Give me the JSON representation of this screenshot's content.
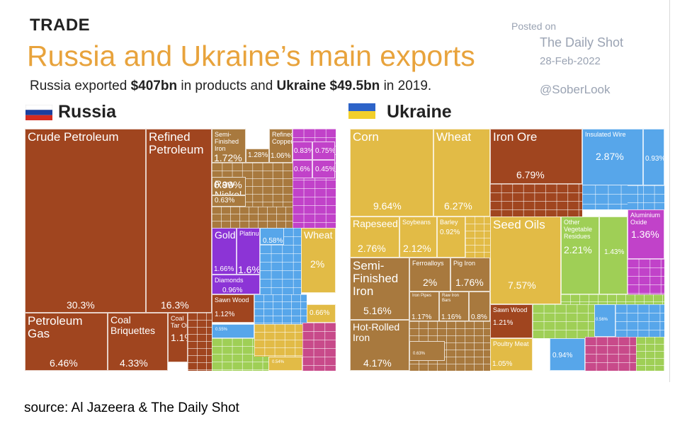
{
  "header": {
    "kicker": "TRADE",
    "title": "Russia and Ukraine’s main exports",
    "subtitle_parts": [
      "Russia exported ",
      "$407bn",
      " in products and ",
      "Ukraine",
      " ",
      "$49.5bn",
      " in 2019."
    ],
    "posted_on": "Posted on",
    "publisher": "The Daily Shot",
    "date": "28-Feb-2022",
    "handle": "@SoberLook"
  },
  "countries": {
    "russia": "Russia",
    "ukraine": "Ukraine"
  },
  "source": "source: Al Jazeera & The Daily Shot",
  "colors": {
    "brown": "#a0451f",
    "tan": "#a8793e",
    "yellow": "#e2bb46",
    "purple": "#8c34d6",
    "blue": "#57a6ea",
    "magenta": "#c142c9",
    "green": "#9fcf56",
    "pink": "#c84a8a",
    "title_orange": "#e8a33c"
  },
  "chart_data": [
    {
      "type": "treemap",
      "name": "Russia",
      "tiles": [
        {
          "label": "Crude Petroleum",
          "value": "30.3%",
          "color": "#a0451f"
        },
        {
          "label": "Refined Petroleum",
          "value": "16.3%",
          "color": "#a0451f"
        },
        {
          "label": "Petroleum Gas",
          "value": "6.46%",
          "color": "#a0451f"
        },
        {
          "label": "Coal Briquettes",
          "value": "4.33%",
          "color": "#a0451f"
        },
        {
          "label": "Coal Tar Oil",
          "value": "1.1%",
          "color": "#a0451f"
        },
        {
          "label": "Semi-Finished Iron",
          "value": "1.72%",
          "color": "#a8793e"
        },
        {
          "label": "",
          "value": "1.28%",
          "color": "#a8793e"
        },
        {
          "label": "Refined Copper",
          "value": "1.06%",
          "color": "#a8793e"
        },
        {
          "label": "Raw Nickel",
          "value": "0.99%",
          "color": "#a8793e"
        },
        {
          "label": "",
          "value": "0.63%",
          "color": "#a8793e"
        },
        {
          "label": "",
          "value": "0.83%",
          "color": "#c142c9"
        },
        {
          "label": "",
          "value": "0.75%",
          "color": "#c142c9"
        },
        {
          "label": "",
          "value": "0.6%",
          "color": "#c142c9"
        },
        {
          "label": "",
          "value": "0.45%",
          "color": "#c142c9"
        },
        {
          "label": "Gold",
          "value": "1.66%",
          "color": "#8c34d6"
        },
        {
          "label": "Platinum",
          "value": "1.6%",
          "color": "#8c34d6"
        },
        {
          "label": "Diamonds",
          "value": "0.96%",
          "color": "#8c34d6"
        },
        {
          "label": "",
          "value": "0.58%",
          "color": "#57a6ea"
        },
        {
          "label": "Wheat",
          "value": "2%",
          "color": "#e2bb46"
        },
        {
          "label": "Sawn Wood",
          "value": "1.12%",
          "color": "#a0451f"
        },
        {
          "label": "",
          "value": "0.66%",
          "color": "#e2bb46"
        },
        {
          "label": "",
          "value": "0.55%",
          "color": "#57a6ea"
        },
        {
          "label": "",
          "value": "0.54%",
          "color": "#e2bb46"
        }
      ]
    },
    {
      "type": "treemap",
      "name": "Ukraine",
      "tiles": [
        {
          "label": "Corn",
          "value": "9.64%",
          "color": "#e2bb46"
        },
        {
          "label": "Wheat",
          "value": "6.27%",
          "color": "#e2bb46"
        },
        {
          "label": "Iron Ore",
          "value": "6.79%",
          "color": "#a0451f"
        },
        {
          "label": "Insulated Wire",
          "value": "2.87%",
          "color": "#57a6ea"
        },
        {
          "label": "",
          "value": "0.93%",
          "color": "#57a6ea"
        },
        {
          "label": "Rapeseed",
          "value": "2.76%",
          "color": "#e2bb46"
        },
        {
          "label": "Soybeans",
          "value": "2.12%",
          "color": "#e2bb46"
        },
        {
          "label": "Barley",
          "value": "0.92%",
          "color": "#e2bb46"
        },
        {
          "label": "Seed Oils",
          "value": "7.57%",
          "color": "#e2bb46"
        },
        {
          "label": "Other Vegetable Residues",
          "value": "2.21%",
          "color": "#9fcf56"
        },
        {
          "label": "",
          "value": "1.43%",
          "color": "#9fcf56"
        },
        {
          "label": "Aluminium Oxide",
          "value": "1.36%",
          "color": "#c142c9"
        },
        {
          "label": "Semi-Finished Iron",
          "value": "5.16%",
          "color": "#a8793e"
        },
        {
          "label": "Ferroalloys",
          "value": "2%",
          "color": "#a8793e"
        },
        {
          "label": "Pig Iron",
          "value": "1.76%",
          "color": "#a8793e"
        },
        {
          "label": "Iron Pipes",
          "value": "1.17%",
          "color": "#a8793e"
        },
        {
          "label": "Raw Iron Bars",
          "value": "1.16%",
          "color": "#a8793e"
        },
        {
          "label": "",
          "value": "0.8%",
          "color": "#a8793e"
        },
        {
          "label": "Hot-Rolled Iron",
          "value": "4.17%",
          "color": "#a8793e"
        },
        {
          "label": "",
          "value": "0.63%",
          "color": "#a8793e"
        },
        {
          "label": "Sawn Wood",
          "value": "1.21%",
          "color": "#a0451f"
        },
        {
          "label": "Poultry Meat",
          "value": "1.05%",
          "color": "#e2bb46"
        },
        {
          "label": "",
          "value": "0.94%",
          "color": "#57a6ea"
        },
        {
          "label": "",
          "value": "0.56%",
          "color": "#57a6ea"
        }
      ]
    }
  ]
}
